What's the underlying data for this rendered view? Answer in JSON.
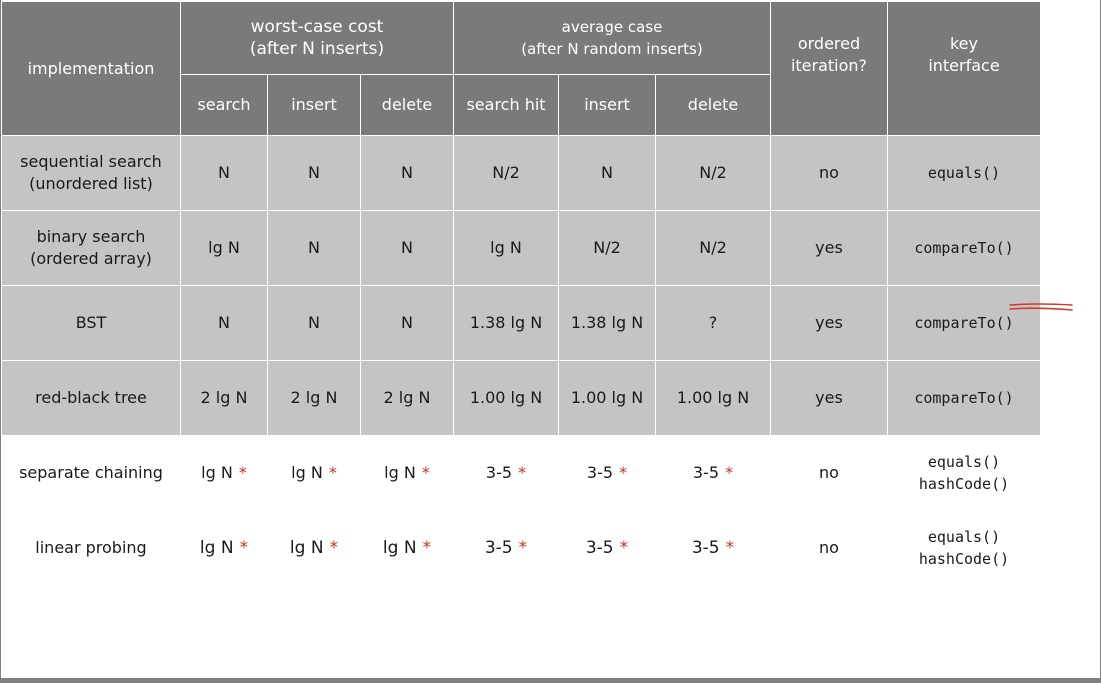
{
  "header": {
    "implementation": "implementation",
    "worst_case": "worst-case cost\n(after N inserts)",
    "average_case": "average case\n(after N random inserts)",
    "ordered_iteration": "ordered\niteration?",
    "key_interface": "key\ninterface",
    "subcolumns": [
      "search",
      "insert",
      "delete",
      "search hit",
      "insert",
      "delete"
    ]
  },
  "rows": [
    {
      "name": "sequential search\n(unordered list)",
      "cells": [
        "N",
        "N",
        "N",
        "N/2",
        "N",
        "N/2"
      ],
      "ordered": "no",
      "key": "equals()"
    },
    {
      "name": "binary search\n(ordered array)",
      "cells": [
        "lg N",
        "N",
        "N",
        "lg N",
        "N/2",
        "N/2"
      ],
      "ordered": "yes",
      "key": "compareTo()"
    },
    {
      "name": "BST",
      "cells": [
        "N",
        "N",
        "N",
        "1.38 lg N",
        "1.38 lg N",
        "?"
      ],
      "ordered": "yes",
      "key": "compareTo()"
    },
    {
      "name": "red-black tree",
      "cells": [
        "2 lg N",
        "2 lg N",
        "2 lg N",
        "1.00 lg N",
        "1.00 lg N",
        "1.00 lg N"
      ],
      "ordered": "yes",
      "key": "compareTo()"
    },
    {
      "name": "separate chaining",
      "cells": [
        "lg N",
        "lg N",
        "lg N",
        "3-5",
        "3-5",
        "3-5"
      ],
      "ordered": "no",
      "key": "equals()\nhashCode()"
    },
    {
      "name": "linear probing",
      "cells": [
        "lg N",
        "lg N",
        "lg N",
        "3-5",
        "3-5",
        "3-5"
      ],
      "ordered": "no",
      "key": "equals()\nhashCode()"
    }
  ],
  "asterisk": "*",
  "colors": {
    "header_bg": "#7a7a7a",
    "row_gray": "#c4c4c4",
    "asterisk": "#c8312b",
    "annotation": "#d23a2a"
  }
}
